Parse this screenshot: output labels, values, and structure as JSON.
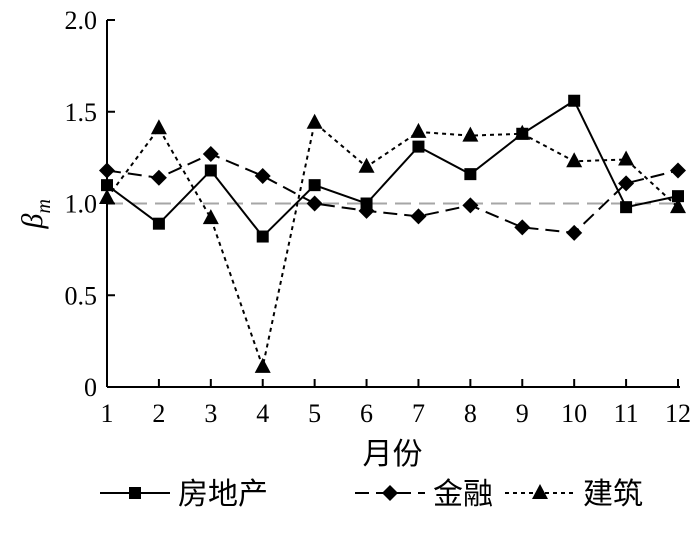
{
  "chart_data": {
    "type": "line",
    "title": "",
    "xlabel": "月份",
    "ylabel": "β",
    "ylabel_sub": "m",
    "x": [
      1,
      2,
      3,
      4,
      5,
      6,
      7,
      8,
      9,
      10,
      11,
      12
    ],
    "x_ticks": [
      "1",
      "2",
      "3",
      "4",
      "5",
      "6",
      "7",
      "8",
      "9",
      "10",
      "11",
      "12"
    ],
    "ylim": [
      0,
      2.0
    ],
    "y_ticks": [
      "0",
      "0.5",
      "1.0",
      "1.5",
      "2.0"
    ],
    "reference_line": {
      "y": 1.0,
      "color": "#a6a6a6",
      "style": "dashed"
    },
    "grid": false,
    "legend": "bottom",
    "series": [
      {
        "name": "房地产",
        "marker": "square",
        "line": "solid",
        "values": [
          1.1,
          0.89,
          1.18,
          0.82,
          1.1,
          1.0,
          1.31,
          1.16,
          1.38,
          1.56,
          0.98,
          1.04
        ]
      },
      {
        "name": "金融",
        "marker": "diamond",
        "line": "dashed",
        "values": [
          1.18,
          1.14,
          1.27,
          1.15,
          1.0,
          0.96,
          0.93,
          0.99,
          0.87,
          0.84,
          1.11,
          1.18
        ]
      },
      {
        "name": "建筑",
        "marker": "triangle",
        "line": "dotted",
        "values": [
          1.03,
          1.41,
          0.92,
          0.11,
          1.44,
          1.2,
          1.39,
          1.37,
          1.38,
          1.23,
          1.24,
          0.98
        ]
      }
    ]
  }
}
